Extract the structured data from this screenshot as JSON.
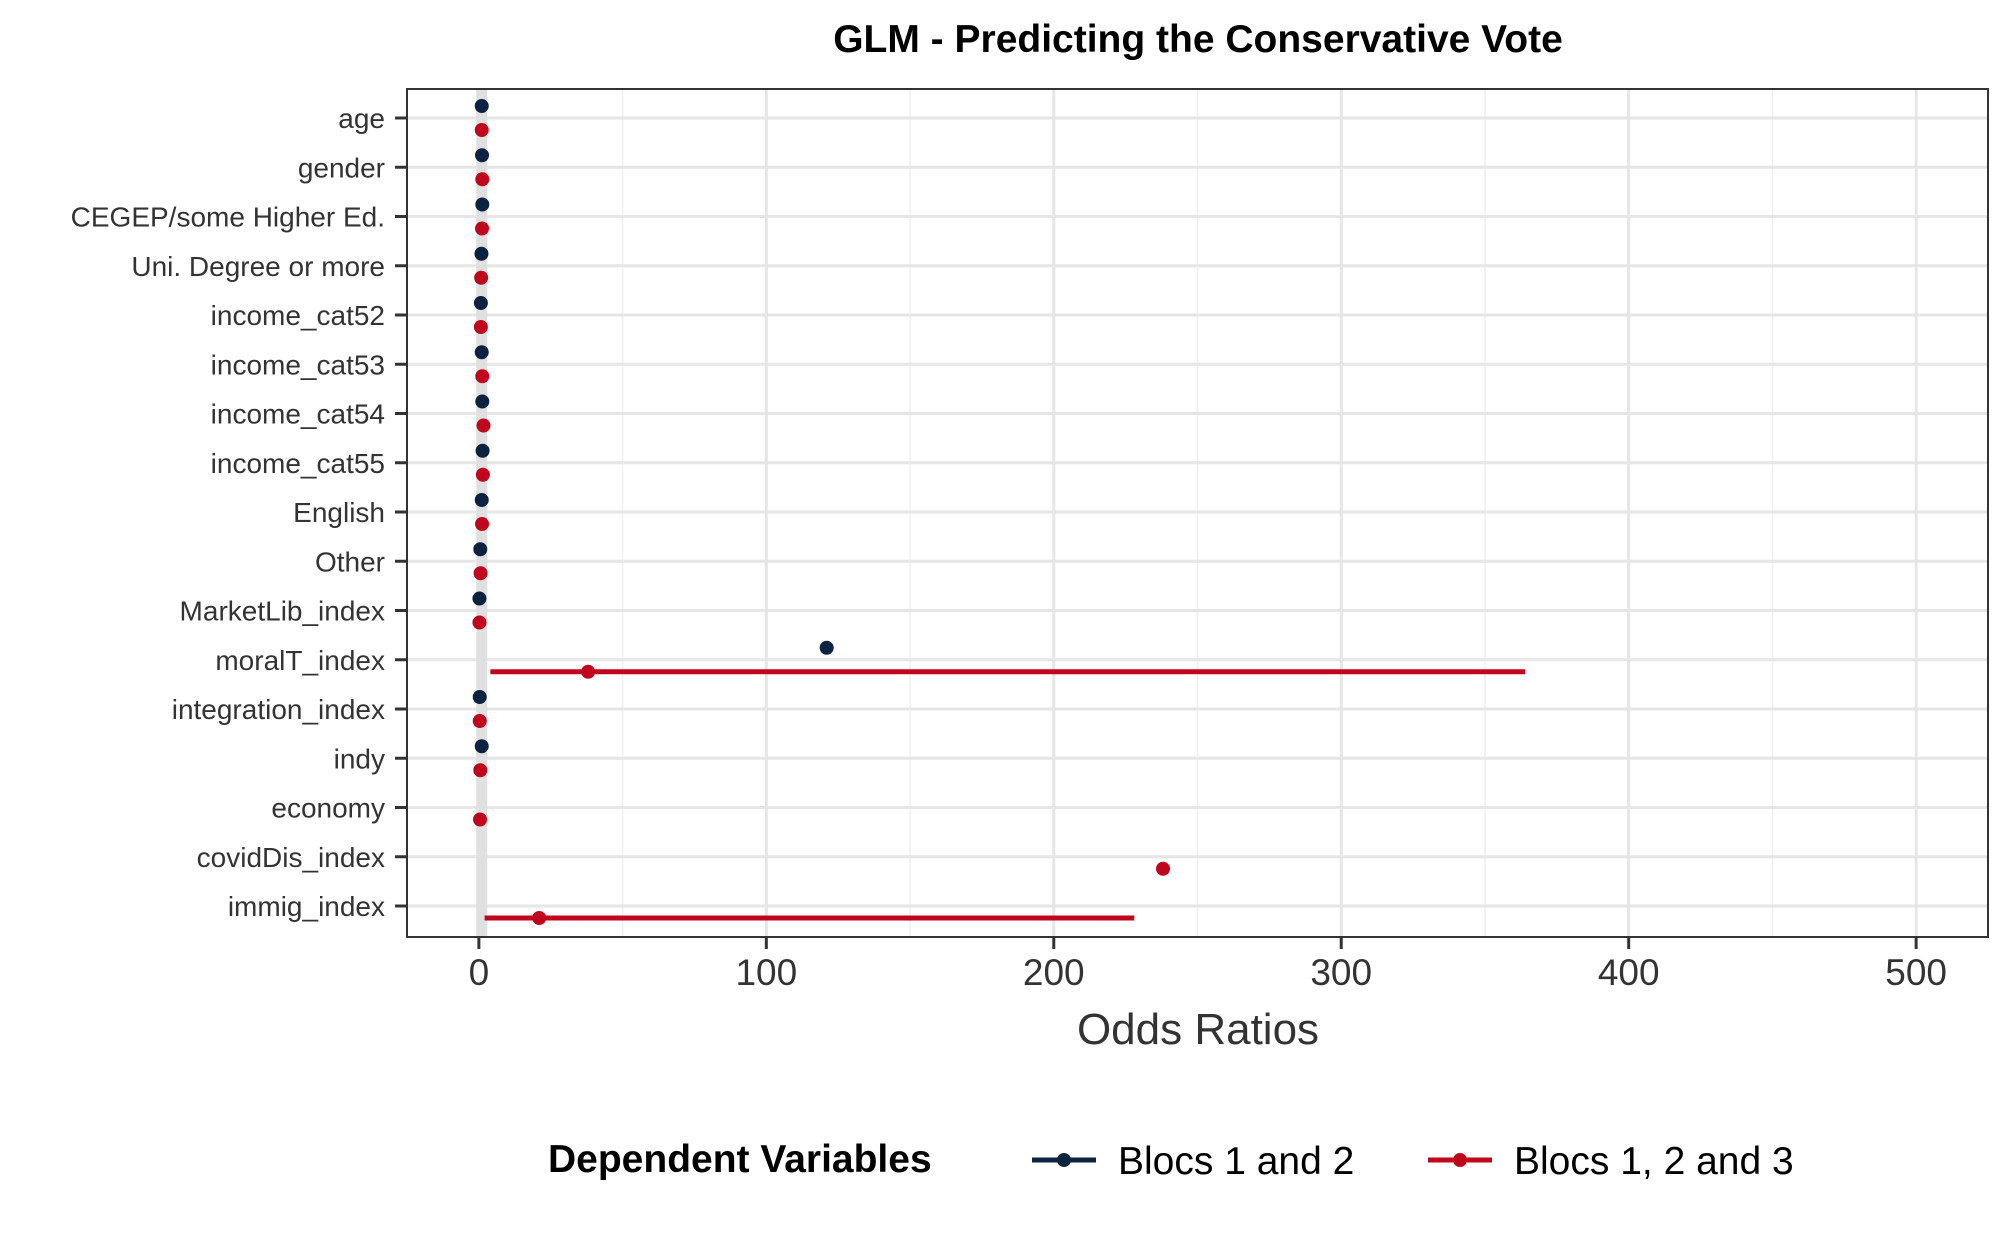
{
  "chart_data": {
    "type": "scatter",
    "title": "GLM - Predicting the Conservative Vote",
    "xlabel": "Odds Ratios",
    "ylabel": "",
    "xlim": [
      -25,
      525
    ],
    "xticks": [
      0,
      100,
      200,
      300,
      400,
      500
    ],
    "grid": true,
    "legend": {
      "title": "Dependent Variables",
      "placement": "bottom"
    },
    "categories": [
      "age",
      "gender",
      "CEGEP/some Higher Ed.",
      "Uni. Degree or more",
      "income_cat52",
      "income_cat53",
      "income_cat54",
      "income_cat55",
      "English",
      "Other",
      "MarketLib_index",
      "moralT_index",
      "integration_index",
      "indy",
      "economy",
      "covidDis_index",
      "immig_index"
    ],
    "series": [
      {
        "name": "Blocs 1 and 2",
        "color": "#0b2340",
        "points": [
          {
            "category": "age",
            "estimate": 1.0
          },
          {
            "category": "gender",
            "estimate": 1.1
          },
          {
            "category": "CEGEP/some Higher Ed.",
            "estimate": 1.2
          },
          {
            "category": "Uni. Degree or more",
            "estimate": 0.9
          },
          {
            "category": "income_cat52",
            "estimate": 0.7
          },
          {
            "category": "income_cat53",
            "estimate": 1.0
          },
          {
            "category": "income_cat54",
            "estimate": 1.2
          },
          {
            "category": "income_cat55",
            "estimate": 1.3
          },
          {
            "category": "English",
            "estimate": 1.0
          },
          {
            "category": "Other",
            "estimate": 0.5
          },
          {
            "category": "MarketLib_index",
            "estimate": 0.2
          },
          {
            "category": "moralT_index",
            "estimate": 121
          },
          {
            "category": "integration_index",
            "estimate": 0.3
          },
          {
            "category": "indy",
            "estimate": 1.0
          }
        ]
      },
      {
        "name": "Blocs 1, 2 and 3",
        "color": "#c0061c",
        "points": [
          {
            "category": "age",
            "estimate": 1.0
          },
          {
            "category": "gender",
            "estimate": 1.2
          },
          {
            "category": "CEGEP/some Higher Ed.",
            "estimate": 1.1
          },
          {
            "category": "Uni. Degree or more",
            "estimate": 0.8
          },
          {
            "category": "income_cat52",
            "estimate": 0.7
          },
          {
            "category": "income_cat53",
            "estimate": 1.2
          },
          {
            "category": "income_cat54",
            "estimate": 1.6
          },
          {
            "category": "income_cat55",
            "estimate": 1.4
          },
          {
            "category": "English",
            "estimate": 1.1
          },
          {
            "category": "Other",
            "estimate": 0.6
          },
          {
            "category": "MarketLib_index",
            "estimate": 0.2
          },
          {
            "category": "moralT_index",
            "estimate": 38,
            "ci_low": 4,
            "ci_high": 364
          },
          {
            "category": "integration_index",
            "estimate": 0.3
          },
          {
            "category": "indy",
            "estimate": 0.5
          },
          {
            "category": "economy",
            "estimate": 0.4
          },
          {
            "category": "covidDis_index",
            "estimate": 238
          },
          {
            "category": "immig_index",
            "estimate": 21,
            "ci_low": 2,
            "ci_high": 228
          }
        ]
      }
    ]
  }
}
